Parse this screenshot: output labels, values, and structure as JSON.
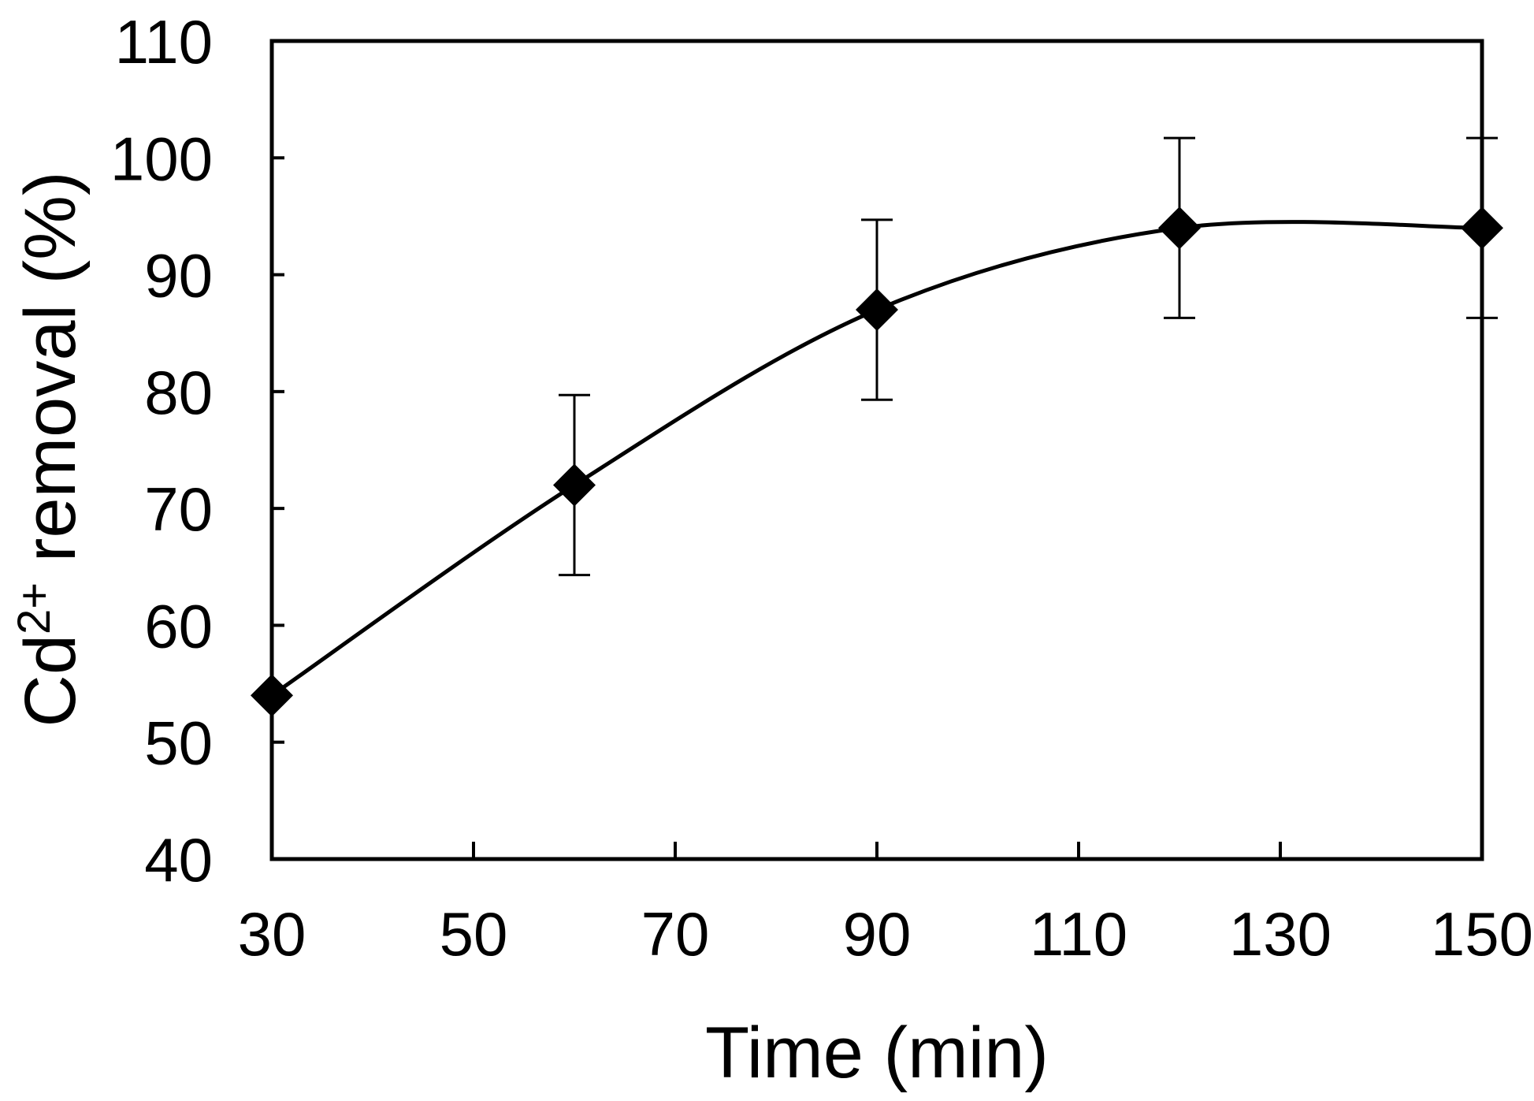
{
  "chart_data": {
    "type": "line",
    "xlabel": "Time (min)",
    "ylabel": {
      "prefix": "Cd",
      "superscript": "2+",
      "suffix": " removal (%)"
    },
    "xlim": [
      30,
      150
    ],
    "ylim": [
      40,
      110
    ],
    "xticks": [
      30,
      50,
      70,
      90,
      110,
      130,
      150
    ],
    "yticks": [
      40,
      50,
      60,
      70,
      80,
      90,
      100,
      110
    ],
    "grid": false,
    "marker": "diamond",
    "line_style": "smoothed",
    "colors": {
      "line": "#000000",
      "marker": "#000000",
      "background": "#ffffff"
    },
    "series": [
      {
        "x": [
          30,
          60,
          90,
          120,
          150
        ],
        "y": [
          54,
          72,
          87,
          94,
          94
        ],
        "error": [
          0,
          7.7,
          7.7,
          7.7,
          7.7
        ]
      }
    ]
  }
}
